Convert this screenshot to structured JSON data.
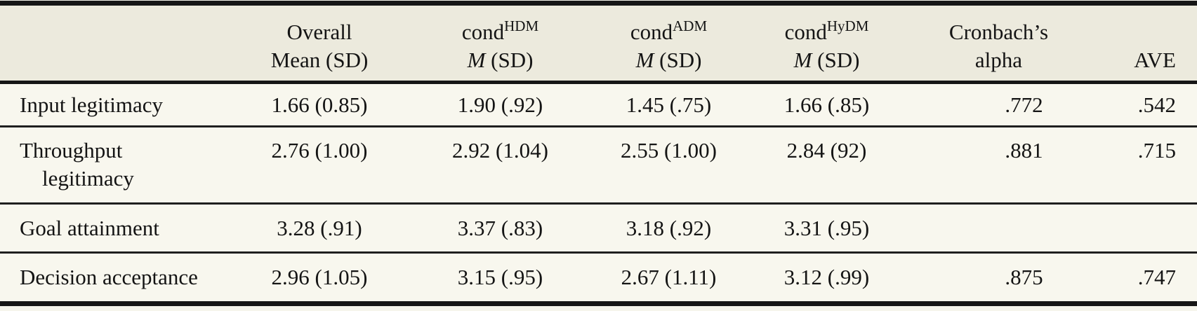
{
  "colors": {
    "page_bg": "#f6f5ec",
    "header_bg": "#eceadd",
    "row_bg": "#f8f7ee",
    "rule_heavy": "#161616",
    "rule_light": "#1f1f1f",
    "text": "#141414"
  },
  "table": {
    "header": {
      "overall": {
        "line1": "Overall",
        "line2": "Mean (SD)"
      },
      "hdm": {
        "base": "cond",
        "sup": "HDM",
        "stat_italic": "M",
        "stat_rest": " (SD)"
      },
      "adm": {
        "base": "cond",
        "sup": "ADM",
        "stat_italic": "M",
        "stat_rest": " (SD)"
      },
      "hydm": {
        "base": "cond",
        "sup": "HyDM",
        "stat_italic": "M",
        "stat_rest": " (SD)"
      },
      "alpha": {
        "line1": "Cronbach’s",
        "line2": "alpha"
      },
      "ave": {
        "line2": "AVE"
      }
    },
    "rows": [
      {
        "label1": "Input legitimacy",
        "label2": "",
        "overall": "1.66 (0.85)",
        "hdm": "1.90 (.92)",
        "adm": "1.45 (.75)",
        "hydm": "1.66 (.85)",
        "alpha": ".772",
        "ave": ".542"
      },
      {
        "label1": "Throughput",
        "label2": "legitimacy",
        "overall": "2.76 (1.00)",
        "hdm": "2.92 (1.04)",
        "adm": "2.55 (1.00)",
        "hydm": "2.84 (92)",
        "alpha": ".881",
        "ave": ".715"
      },
      {
        "label1": "Goal attainment",
        "label2": "",
        "overall": "3.28 (.91)",
        "hdm": "3.37 (.83)",
        "adm": "3.18 (.92)",
        "hydm": "3.31 (.95)",
        "alpha": "",
        "ave": ""
      },
      {
        "label1": "Decision acceptance",
        "label2": "",
        "overall": "2.96 (1.05)",
        "hdm": "3.15 (.95)",
        "adm": "2.67 (1.11)",
        "hydm": "3.12 (.99)",
        "alpha": ".875",
        "ave": ".747"
      }
    ]
  }
}
